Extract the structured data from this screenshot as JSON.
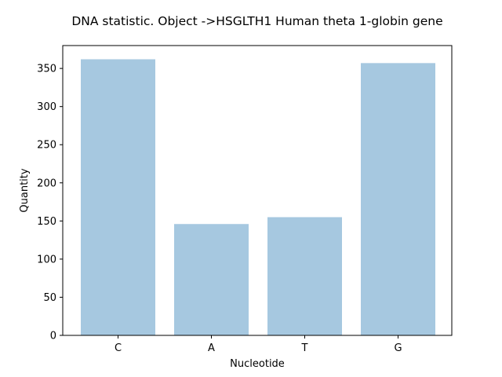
{
  "chart_data": {
    "type": "bar",
    "title": "DNA statistic. Object ->HSGLTH1 Human theta 1-globin gene",
    "xlabel": "Nucleotide",
    "ylabel": "Quantity",
    "categories": [
      "C",
      "A",
      "T",
      "G"
    ],
    "values": [
      362,
      146,
      155,
      357
    ],
    "ylim": [
      0,
      380
    ],
    "yticks": [
      0,
      50,
      100,
      150,
      200,
      250,
      300,
      350
    ],
    "grid": false,
    "legend": "none",
    "bar_color": "#a6c8e0"
  }
}
